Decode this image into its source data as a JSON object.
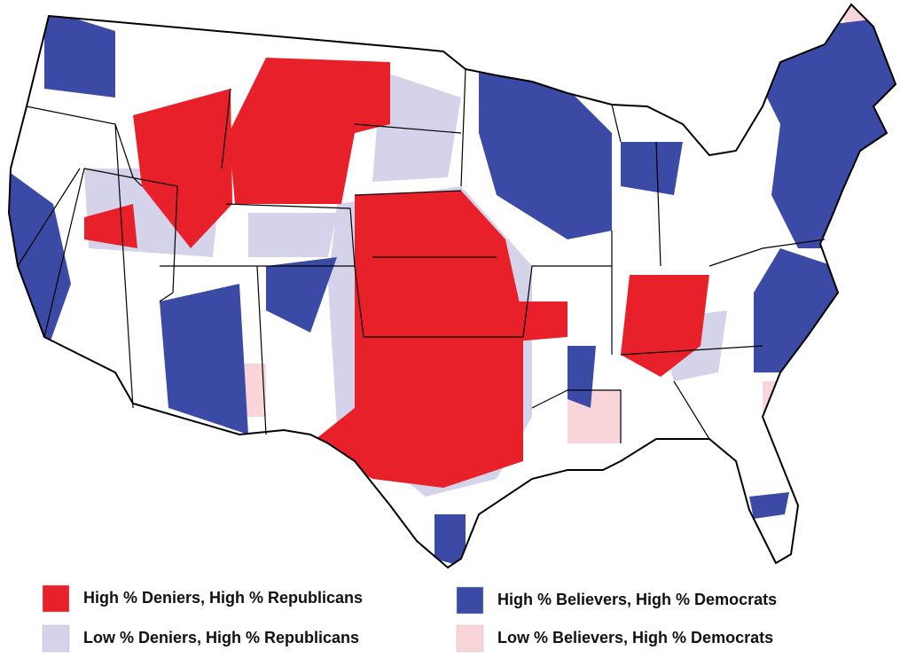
{
  "legend": [
    {
      "label": "High % Deniers, High % Republicans",
      "color": "#e8202a"
    },
    {
      "label": "High % Believers, High % Democrats",
      "color": "#3b4aa5"
    },
    {
      "label": "Low % Deniers, High % Republicans",
      "color": "#d4d3ea"
    },
    {
      "label": "Low % Believers, High % Democrats",
      "color": "#f9d5d9"
    }
  ]
}
